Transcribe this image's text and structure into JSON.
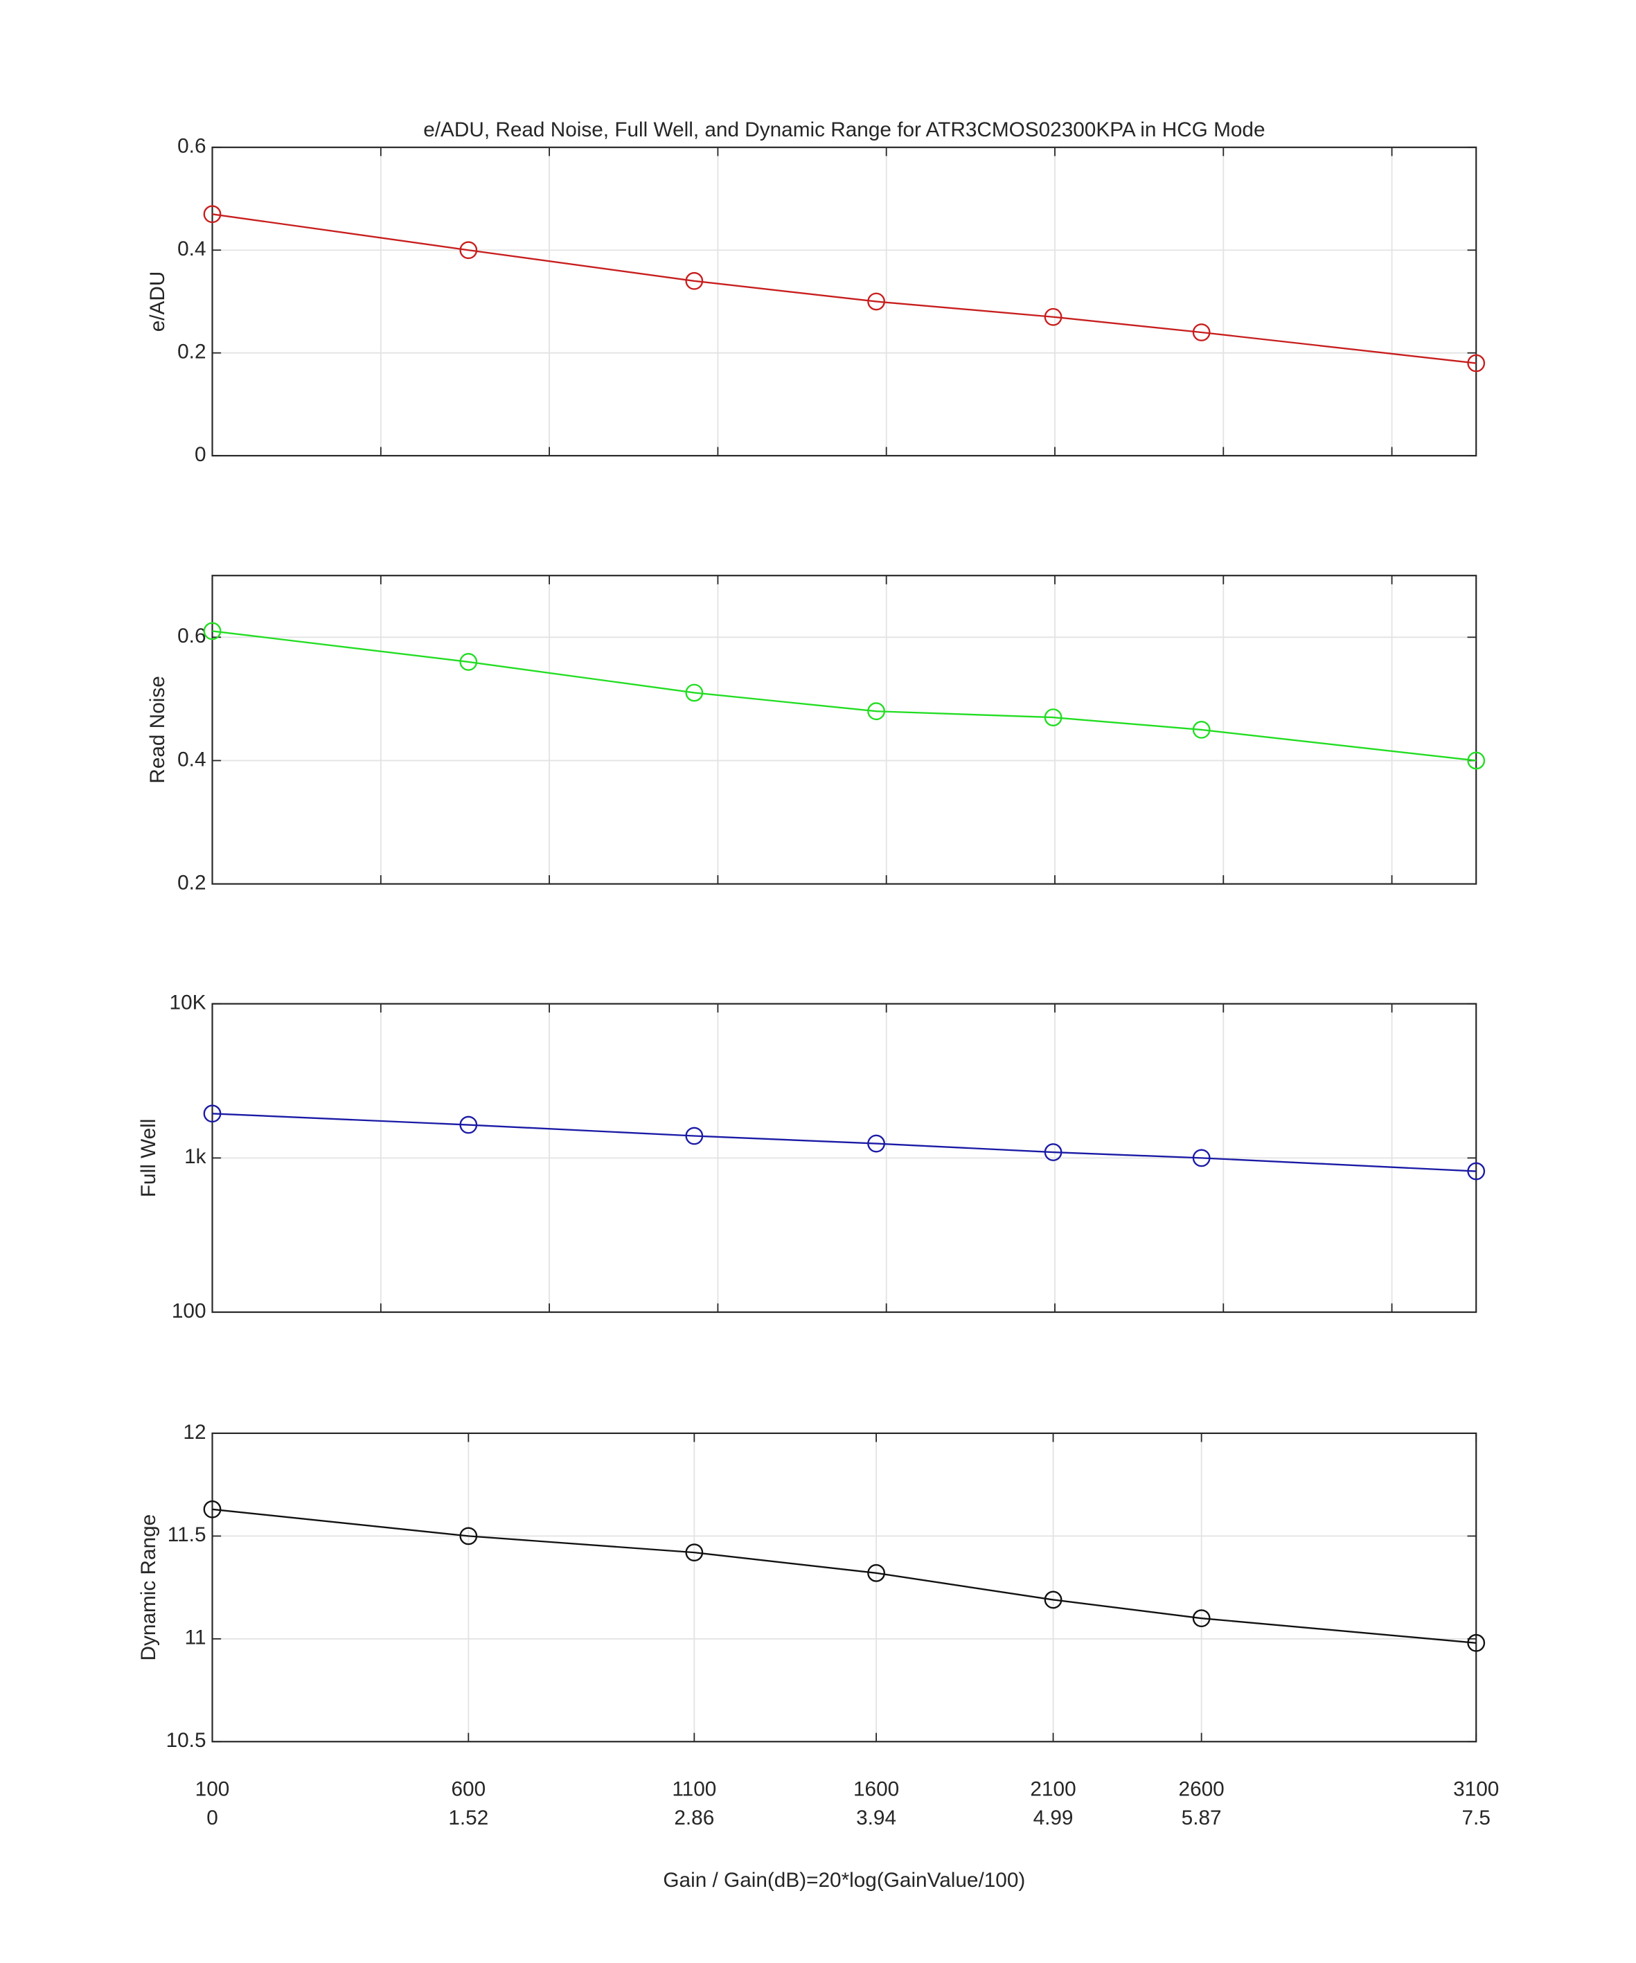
{
  "chart_data": [
    {
      "type": "line",
      "title": "e/ADU, Read Noise, Full Well, and Dynamic Range for ATR3CMOS02300KPA in HCG Mode",
      "ylabel": "e/ADU",
      "x": [
        0,
        1.52,
        2.86,
        3.94,
        4.99,
        5.87,
        7.5
      ],
      "values": [
        0.47,
        0.4,
        0.34,
        0.3,
        0.27,
        0.24,
        0.18
      ],
      "color": "#c81e1e",
      "marker": "circle",
      "xlim": [
        0,
        7.5
      ],
      "xticks": [
        1,
        2,
        3,
        4,
        5,
        6,
        7
      ],
      "xtick_labels": false,
      "ylim": [
        0,
        0.6
      ],
      "yticks": [
        0,
        0.2,
        0.4,
        0.6
      ],
      "grid": true
    },
    {
      "type": "line",
      "ylabel": "Read Noise",
      "x": [
        0,
        1.52,
        2.86,
        3.94,
        4.99,
        5.87,
        7.5
      ],
      "values": [
        0.61,
        0.56,
        0.51,
        0.48,
        0.47,
        0.45,
        0.4
      ],
      "color": "#22dd22",
      "marker": "circle",
      "xlim": [
        0,
        7.5
      ],
      "xticks": [
        1,
        2,
        3,
        4,
        5,
        6,
        7
      ],
      "xtick_labels": false,
      "ylim": [
        0.2,
        0.7
      ],
      "yticks": [
        0.2,
        0.4,
        0.6
      ],
      "grid": true
    },
    {
      "type": "line",
      "ylabel": "Full Well",
      "x": [
        0,
        1.52,
        2.86,
        3.94,
        4.99,
        5.87,
        7.5
      ],
      "values": [
        1940,
        1640,
        1390,
        1240,
        1090,
        1000,
        820
      ],
      "color": "#1a1aa6",
      "marker": "circle",
      "xlim": [
        0,
        7.5
      ],
      "xticks": [
        1,
        2,
        3,
        4,
        5,
        6,
        7
      ],
      "xtick_labels": false,
      "yscale": "log",
      "ylim": [
        100,
        10000
      ],
      "yticks": [
        100,
        {
          "value": 1000,
          "label": "1k"
        },
        {
          "value": 10000,
          "label": "10K"
        }
      ],
      "grid": true
    },
    {
      "type": "line",
      "ylabel": "Dynamic Range",
      "xlabel": "Gain / Gain(dB)=20*log(GainValue/100)",
      "x": [
        0,
        1.52,
        2.86,
        3.94,
        4.99,
        5.87,
        7.5
      ],
      "values": [
        11.63,
        11.5,
        11.42,
        11.32,
        11.19,
        11.1,
        10.98
      ],
      "color": "#111111",
      "marker": "circle",
      "xlim": [
        0,
        7.5
      ],
      "xticks": [
        0,
        1.52,
        2.86,
        3.94,
        4.99,
        5.87,
        7.5
      ],
      "xtick_labels": true,
      "xtick_gain_labels": [
        "100",
        "600",
        "1100",
        "1600",
        "2100",
        "2600",
        "3100"
      ],
      "ylim": [
        10.5,
        12
      ],
      "yticks": [
        10.5,
        11,
        11.5,
        12
      ],
      "grid": true
    }
  ]
}
